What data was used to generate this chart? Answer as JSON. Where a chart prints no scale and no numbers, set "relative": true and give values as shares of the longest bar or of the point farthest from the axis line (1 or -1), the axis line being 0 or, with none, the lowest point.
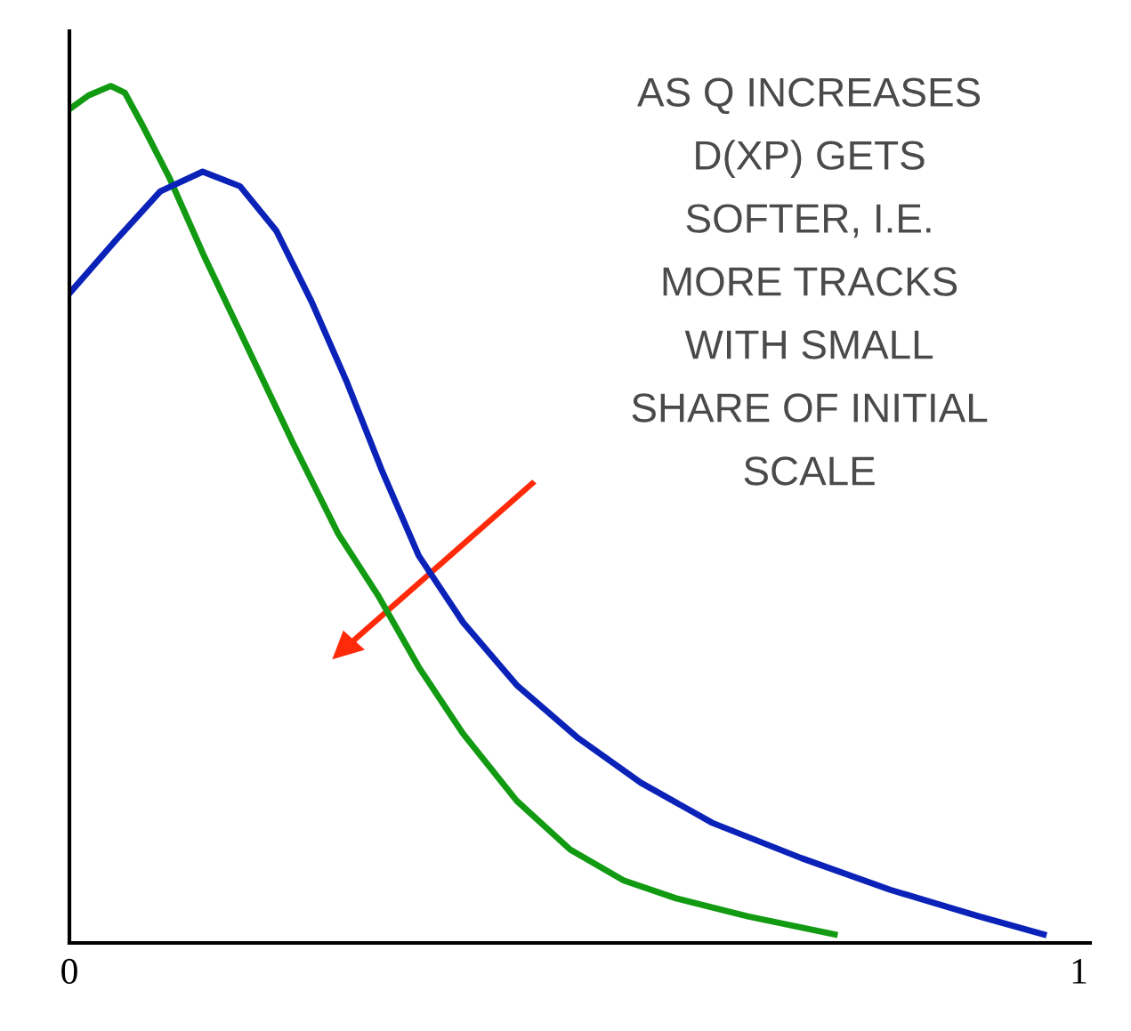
{
  "chart_data": {
    "type": "line",
    "relative": true,
    "xlim": [
      0,
      1.011
    ],
    "xticks": [
      0,
      1
    ],
    "tick_labels": "x",
    "grid": false,
    "legend": false,
    "marker": "none",
    "line_style": "solid",
    "series": [
      {
        "color": "#129a12",
        "x": [
          0,
          0.019,
          0.041,
          0.055,
          0.072,
          0.099,
          0.134,
          0.178,
          0.222,
          0.266,
          0.306,
          0.346,
          0.39,
          0.443,
          0.496,
          0.549,
          0.601,
          0.672,
          0.758
        ],
        "values": [
          0.973,
          0.989,
          1.0,
          0.992,
          0.955,
          0.893,
          0.8,
          0.691,
          0.582,
          0.478,
          0.405,
          0.322,
          0.244,
          0.166,
          0.109,
          0.073,
          0.052,
          0.031,
          0.01
        ]
      },
      {
        "color": "#0a22b8",
        "x": [
          0,
          0.046,
          0.09,
          0.132,
          0.169,
          0.205,
          0.24,
          0.275,
          0.31,
          0.346,
          0.39,
          0.443,
          0.504,
          0.566,
          0.637,
          0.725,
          0.813,
          0.901,
          0.965
        ],
        "values": [
          0.758,
          0.82,
          0.877,
          0.9,
          0.883,
          0.831,
          0.748,
          0.654,
          0.55,
          0.452,
          0.374,
          0.301,
          0.239,
          0.187,
          0.14,
          0.099,
          0.062,
          0.031,
          0.01
        ]
      }
    ],
    "annotations": [
      "AS Q INCREASES\nD(XP) GETS\nSOFTER, I.E.\nMORE TRACKS\nWITH SMALL\nSHARE OF INITIAL\nSCALE"
    ]
  }
}
